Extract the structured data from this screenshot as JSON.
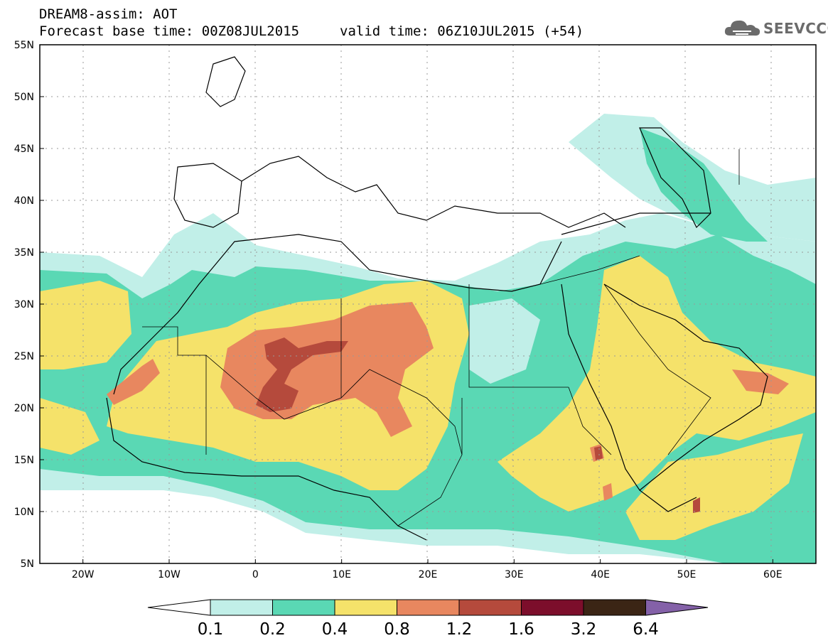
{
  "header": {
    "title_line1": "DREAM8-assim: AOT",
    "title_line2_left": "Forecast base time: 00Z08JUL2015",
    "title_line2_right": "valid time: 06Z10JUL2015 (+54)"
  },
  "logo": {
    "text": "SEEVCCC",
    "icon": "cloud-icon"
  },
  "map": {
    "variable": "AOT",
    "lat_range": [
      5,
      55
    ],
    "lon_range": [
      -25,
      65
    ],
    "lat_labels": [
      "55N",
      "50N",
      "45N",
      "40N",
      "35N",
      "30N",
      "25N",
      "20N",
      "15N",
      "10N",
      "5N"
    ],
    "lon_labels": [
      "20W",
      "10W",
      "0",
      "10E",
      "20E",
      "30E",
      "40E",
      "50E",
      "60E"
    ],
    "lat_values": [
      55,
      50,
      45,
      40,
      35,
      30,
      25,
      20,
      15,
      10,
      5
    ],
    "lon_values": [
      -20,
      -10,
      0,
      10,
      20,
      30,
      40,
      50,
      60
    ],
    "gridlines": true
  },
  "colorbar": {
    "labels": [
      "0.1",
      "0.2",
      "0.4",
      "0.8",
      "1.2",
      "1.6",
      "3.2",
      "6.4"
    ],
    "colors": [
      "#ffffff",
      "#c1efe8",
      "#5ad8b4",
      "#f5e26a",
      "#e8875f",
      "#b54a3c",
      "#7c0e2b",
      "#3b2515",
      "#8461a8"
    ]
  }
}
